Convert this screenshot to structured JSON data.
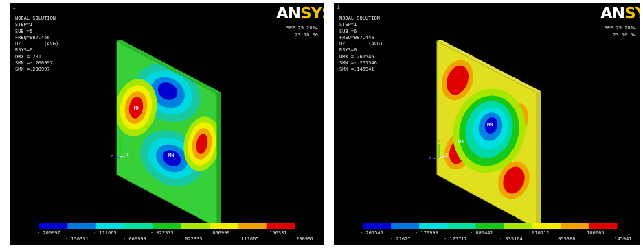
{
  "colors": {
    "contour": [
      "#0000d8",
      "#0078e0",
      "#00e0e0",
      "#00e0a0",
      "#18c818",
      "#a8e800",
      "#f0f000",
      "#f0a400",
      "#e00000"
    ],
    "brand_ansys": "#ffffff",
    "brand_sys": "#f2c200"
  },
  "panels": [
    {
      "window_number": "1",
      "info": {
        "title": "NODAL SOLUTION",
        "step": "STEP=1",
        "sub": "SUB =5",
        "freq": "FREQ=887.446",
        "uz": "UZ        (AVG)",
        "rsys": "RSYS=0",
        "dmx": "DMX =.201",
        "smn": "SMN =-.200997",
        "smx": "SMX =.200997"
      },
      "brand": {
        "an": "AN",
        "sys": "SYS"
      },
      "date": "SEP 29 2014",
      "time": "23:10:06",
      "mx_label": "MX",
      "mn_label": "MN",
      "triad": {
        "x": "X",
        "y": "Y",
        "z": "Z"
      },
      "legend": {
        "top": [
          "-.200997",
          "-.111665",
          "-.022333",
          ".066999",
          ".156331"
        ],
        "bottom": [
          "-.156331",
          "-.066999",
          ".022333",
          ".111665",
          ".200997"
        ]
      }
    },
    {
      "window_number": "1",
      "info": {
        "title": "NODAL SOLUTION",
        "step": "STEP=1",
        "sub": "SUB =6",
        "freq": "FREQ=887.446",
        "uz": "UZ        (AVG)",
        "rsys": "RSYS=0",
        "dmx": "DMX =.261546",
        "smn": "SMN =-.261546",
        "smx": "SMX =.145941"
      },
      "brand": {
        "an": "AN",
        "sys": "SYS"
      },
      "date": "SEP 29 2014",
      "time": "23:10:54",
      "mx_label": "MX",
      "mn_label": "MN",
      "triad": {
        "x": "X",
        "y": "Y",
        "z": "Z"
      },
      "legend": {
        "top": [
          "-.261546",
          "-.170993",
          "-.080441",
          ".010112",
          ".100665"
        ],
        "bottom": [
          "-.21627",
          "-.125717",
          "-.035164",
          ".055388",
          ".145941"
        ]
      }
    }
  ]
}
